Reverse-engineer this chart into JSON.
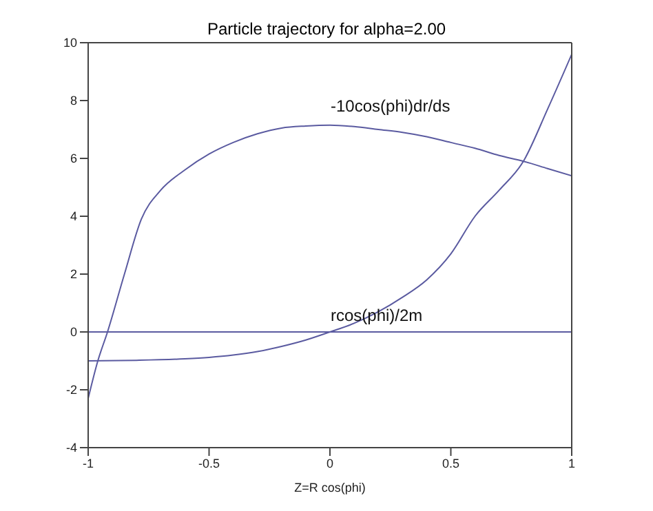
{
  "chart_data": {
    "type": "line",
    "title": "Particle trajectory for alpha=2.00",
    "xlabel": "Z=R cos(phi)",
    "xlim": [
      -1,
      1
    ],
    "xticks": [
      -1,
      -0.5,
      0,
      0.5,
      1
    ],
    "ylim": [
      -4,
      10
    ],
    "yticks": [
      -4,
      -2,
      0,
      2,
      4,
      6,
      8,
      10
    ],
    "marker": "none",
    "line_style": "solid",
    "series": [
      {
        "color": "#5a5aa0",
        "x": [
          -1,
          -0.96,
          -0.92,
          -0.85,
          -0.78,
          -0.7,
          -0.6,
          -0.5,
          -0.4,
          -0.3,
          -0.2,
          -0.1,
          0,
          0.1,
          0.2,
          0.3,
          0.4,
          0.5,
          0.6,
          0.7,
          0.8,
          0.9,
          1
        ],
        "values": [
          -2.3,
          -1,
          0,
          2,
          3.9,
          4.9,
          5.6,
          6.15,
          6.55,
          6.85,
          7.05,
          7.12,
          7.15,
          7.1,
          7,
          6.9,
          6.75,
          6.55,
          6.35,
          6.1,
          5.9,
          5.65,
          5.4
        ]
      },
      {
        "color": "#5a5aa0",
        "x": [
          -1,
          -0.8,
          -0.6,
          -0.5,
          -0.4,
          -0.3,
          -0.2,
          -0.1,
          0,
          0.1,
          0.2,
          0.3,
          0.4,
          0.5,
          0.6,
          0.7,
          0.8,
          0.9,
          1
        ],
        "values": [
          -1,
          -0.98,
          -0.93,
          -0.88,
          -0.8,
          -0.68,
          -0.5,
          -0.28,
          0,
          0.3,
          0.7,
          1.2,
          1.8,
          2.7,
          4,
          4.9,
          5.9,
          7.7,
          9.6
        ]
      },
      {
        "color": "#5a5aa0",
        "x": [
          -1,
          1
        ],
        "values": [
          0,
          0
        ]
      }
    ],
    "annotations": [
      "-10cos(phi)dr/ds",
      "rcos(phi)/2m"
    ]
  }
}
